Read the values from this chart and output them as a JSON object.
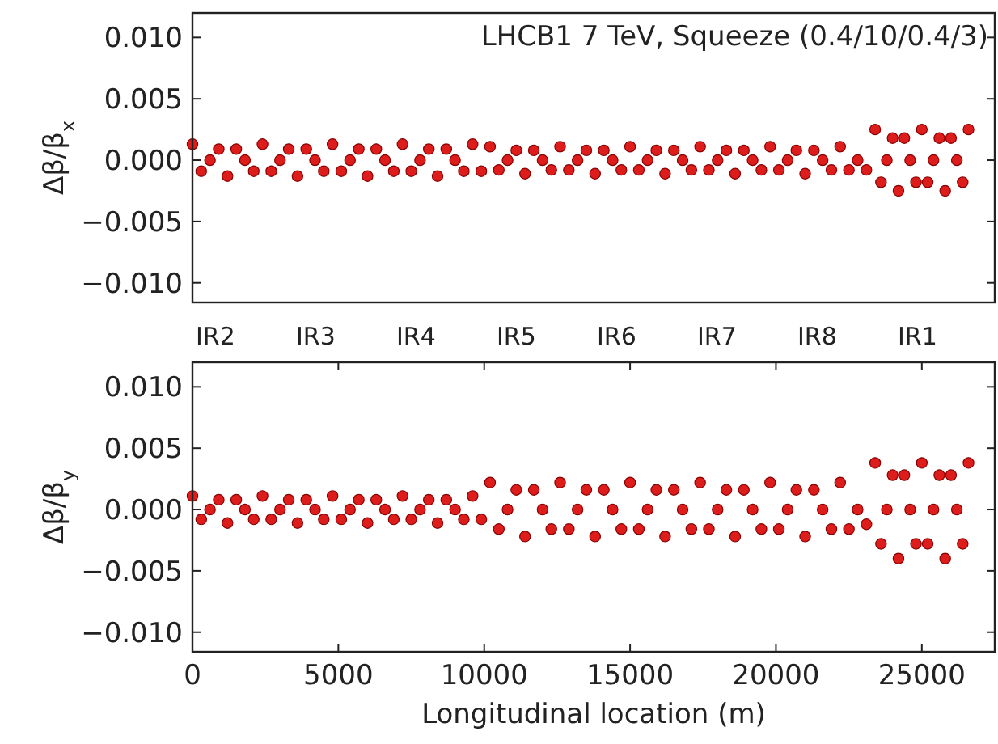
{
  "chart_data": [
    {
      "type": "scatter",
      "title": "LHCB1 7 TeV, Squeeze (0.4/10/0.4/3)",
      "ylabel": "Δβ/β$_{x}$",
      "xlim": [
        0,
        27500
      ],
      "ylim": [
        -0.0116,
        0.012
      ],
      "yticks": [
        {
          "value": 0.01,
          "label": "0.010"
        },
        {
          "value": 0.005,
          "label": "0.005"
        },
        {
          "value": 0,
          "label": "0.000"
        },
        {
          "value": -0.005,
          "label": "−0.005"
        },
        {
          "value": -0.01,
          "label": "−0.010"
        }
      ],
      "tick_labels": "y",
      "marker": "circle",
      "grid": false,
      "annotations": [
        "IR2",
        "IR3",
        "IR4",
        "IR5",
        "IR6",
        "IR7",
        "IR8",
        "IR1"
      ],
      "series": [
        {
          "color": "#dd1c1c",
          "x": [
            0,
            300,
            600,
            900,
            1200,
            1500,
            1800,
            2100,
            2400,
            2700,
            3000,
            3300,
            3600,
            3900,
            4200,
            4500,
            4800,
            5100,
            5400,
            5700,
            6000,
            6300,
            6600,
            6900,
            7200,
            7500,
            7800,
            8100,
            8400,
            8700,
            9000,
            9300,
            9600,
            9900,
            10200,
            10500,
            10800,
            11100,
            11400,
            11700,
            12000,
            12300,
            12600,
            12900,
            13200,
            13500,
            13800,
            14100,
            14400,
            14700,
            15000,
            15300,
            15600,
            15900,
            16200,
            16500,
            16800,
            17100,
            17400,
            17700,
            18000,
            18300,
            18600,
            18900,
            19200,
            19500,
            19800,
            20100,
            20400,
            20700,
            21000,
            21300,
            21600,
            21900,
            22200,
            22500,
            22800,
            23100,
            23400,
            23600,
            23800,
            24000,
            24200,
            24400,
            24600,
            24800,
            25000,
            25200,
            25400,
            25600,
            25800,
            26000,
            26200,
            26400,
            26600
          ],
          "values": [
            0.0013,
            -0.0009,
            0,
            0.0009,
            -0.0013,
            0.0009,
            0,
            -0.0009,
            0.0013,
            -0.0009,
            0,
            0.0009,
            -0.0013,
            0.0009,
            0,
            -0.0009,
            0.0013,
            -0.0009,
            0,
            0.0009,
            -0.0013,
            0.0009,
            0,
            -0.0009,
            0.0013,
            -0.0009,
            0,
            0.0009,
            -0.0013,
            0.0009,
            0,
            -0.0009,
            0.0013,
            -0.0009,
            0.0011,
            -0.0008,
            0,
            0.0008,
            -0.0011,
            0.0008,
            0,
            -0.0008,
            0.0011,
            -0.0008,
            0,
            0.0008,
            -0.0011,
            0.0008,
            0,
            -0.0008,
            0.0011,
            -0.0008,
            0,
            0.0008,
            -0.0011,
            0.0008,
            0,
            -0.0008,
            0.0011,
            -0.0008,
            0,
            0.0008,
            -0.0011,
            0.0008,
            0,
            -0.0008,
            0.0011,
            -0.0008,
            0,
            0.0008,
            -0.0011,
            0.0008,
            0,
            -0.0008,
            0.0011,
            -0.0008,
            0,
            -0.0008,
            0.0025,
            -0.0018,
            0,
            0.0018,
            -0.0025,
            0.0018,
            0,
            -0.0018,
            0.0025,
            -0.0018,
            0,
            0.0018,
            -0.0025,
            0.0018,
            0,
            -0.0018,
            0.0025
          ]
        }
      ]
    },
    {
      "type": "scatter",
      "xlabel": "Longitudinal location (m)",
      "ylabel": "Δβ/β$_{y}$",
      "xlim": [
        0,
        27500
      ],
      "ylim": [
        -0.0116,
        0.012
      ],
      "xticks": [
        0,
        5000,
        10000,
        15000,
        20000,
        25000
      ],
      "yticks": [
        {
          "value": 0.01,
          "label": "0.010"
        },
        {
          "value": 0.005,
          "label": "0.005"
        },
        {
          "value": 0,
          "label": "0.000"
        },
        {
          "value": -0.005,
          "label": "−0.005"
        },
        {
          "value": -0.01,
          "label": "−0.010"
        }
      ],
      "marker": "circle",
      "grid": false,
      "series": [
        {
          "color": "#dd1c1c",
          "x": [
            0,
            300,
            600,
            900,
            1200,
            1500,
            1800,
            2100,
            2400,
            2700,
            3000,
            3300,
            3600,
            3900,
            4200,
            4500,
            4800,
            5100,
            5400,
            5700,
            6000,
            6300,
            6600,
            6900,
            7200,
            7500,
            7800,
            8100,
            8400,
            8700,
            9000,
            9300,
            9600,
            9900,
            10200,
            10500,
            10800,
            11100,
            11400,
            11700,
            12000,
            12300,
            12600,
            12900,
            13200,
            13500,
            13800,
            14100,
            14400,
            14700,
            15000,
            15300,
            15600,
            15900,
            16200,
            16500,
            16800,
            17100,
            17400,
            17700,
            18000,
            18300,
            18600,
            18900,
            19200,
            19500,
            19800,
            20100,
            20400,
            20700,
            21000,
            21300,
            21600,
            21900,
            22200,
            22500,
            22800,
            23100,
            23400,
            23600,
            23800,
            24000,
            24200,
            24400,
            24600,
            24800,
            25000,
            25200,
            25400,
            25600,
            25800,
            26000,
            26200,
            26400,
            26600
          ],
          "values": [
            0.0011,
            -0.0008,
            0,
            0.0008,
            -0.0011,
            0.0008,
            0,
            -0.0008,
            0.0011,
            -0.0008,
            0,
            0.0008,
            -0.0011,
            0.0008,
            0,
            -0.0008,
            0.0011,
            -0.0008,
            0,
            0.0008,
            -0.0011,
            0.0008,
            0,
            -0.0008,
            0.0011,
            -0.0008,
            0,
            0.0008,
            -0.0011,
            0.0008,
            0,
            -0.0008,
            0.0011,
            -0.0008,
            0.0022,
            -0.0016,
            0,
            0.0016,
            -0.0022,
            0.0016,
            0,
            -0.0016,
            0.0022,
            -0.0016,
            0,
            0.0016,
            -0.0022,
            0.0016,
            0,
            -0.0016,
            0.0022,
            -0.0016,
            0,
            0.0016,
            -0.0022,
            0.0016,
            0,
            -0.0016,
            0.0022,
            -0.0016,
            0,
            0.0016,
            -0.0022,
            0.0016,
            0,
            -0.0016,
            0.0022,
            -0.0016,
            0,
            0.0016,
            -0.0022,
            0.0016,
            0,
            -0.0016,
            0.0022,
            -0.0016,
            0,
            -0.0012,
            0.0038,
            -0.0028,
            0,
            0.0028,
            -0.004,
            0.0028,
            0,
            -0.0028,
            0.0038,
            -0.0028,
            0,
            0.0028,
            -0.004,
            0.0028,
            0,
            -0.0028,
            0.0038
          ]
        }
      ]
    }
  ]
}
